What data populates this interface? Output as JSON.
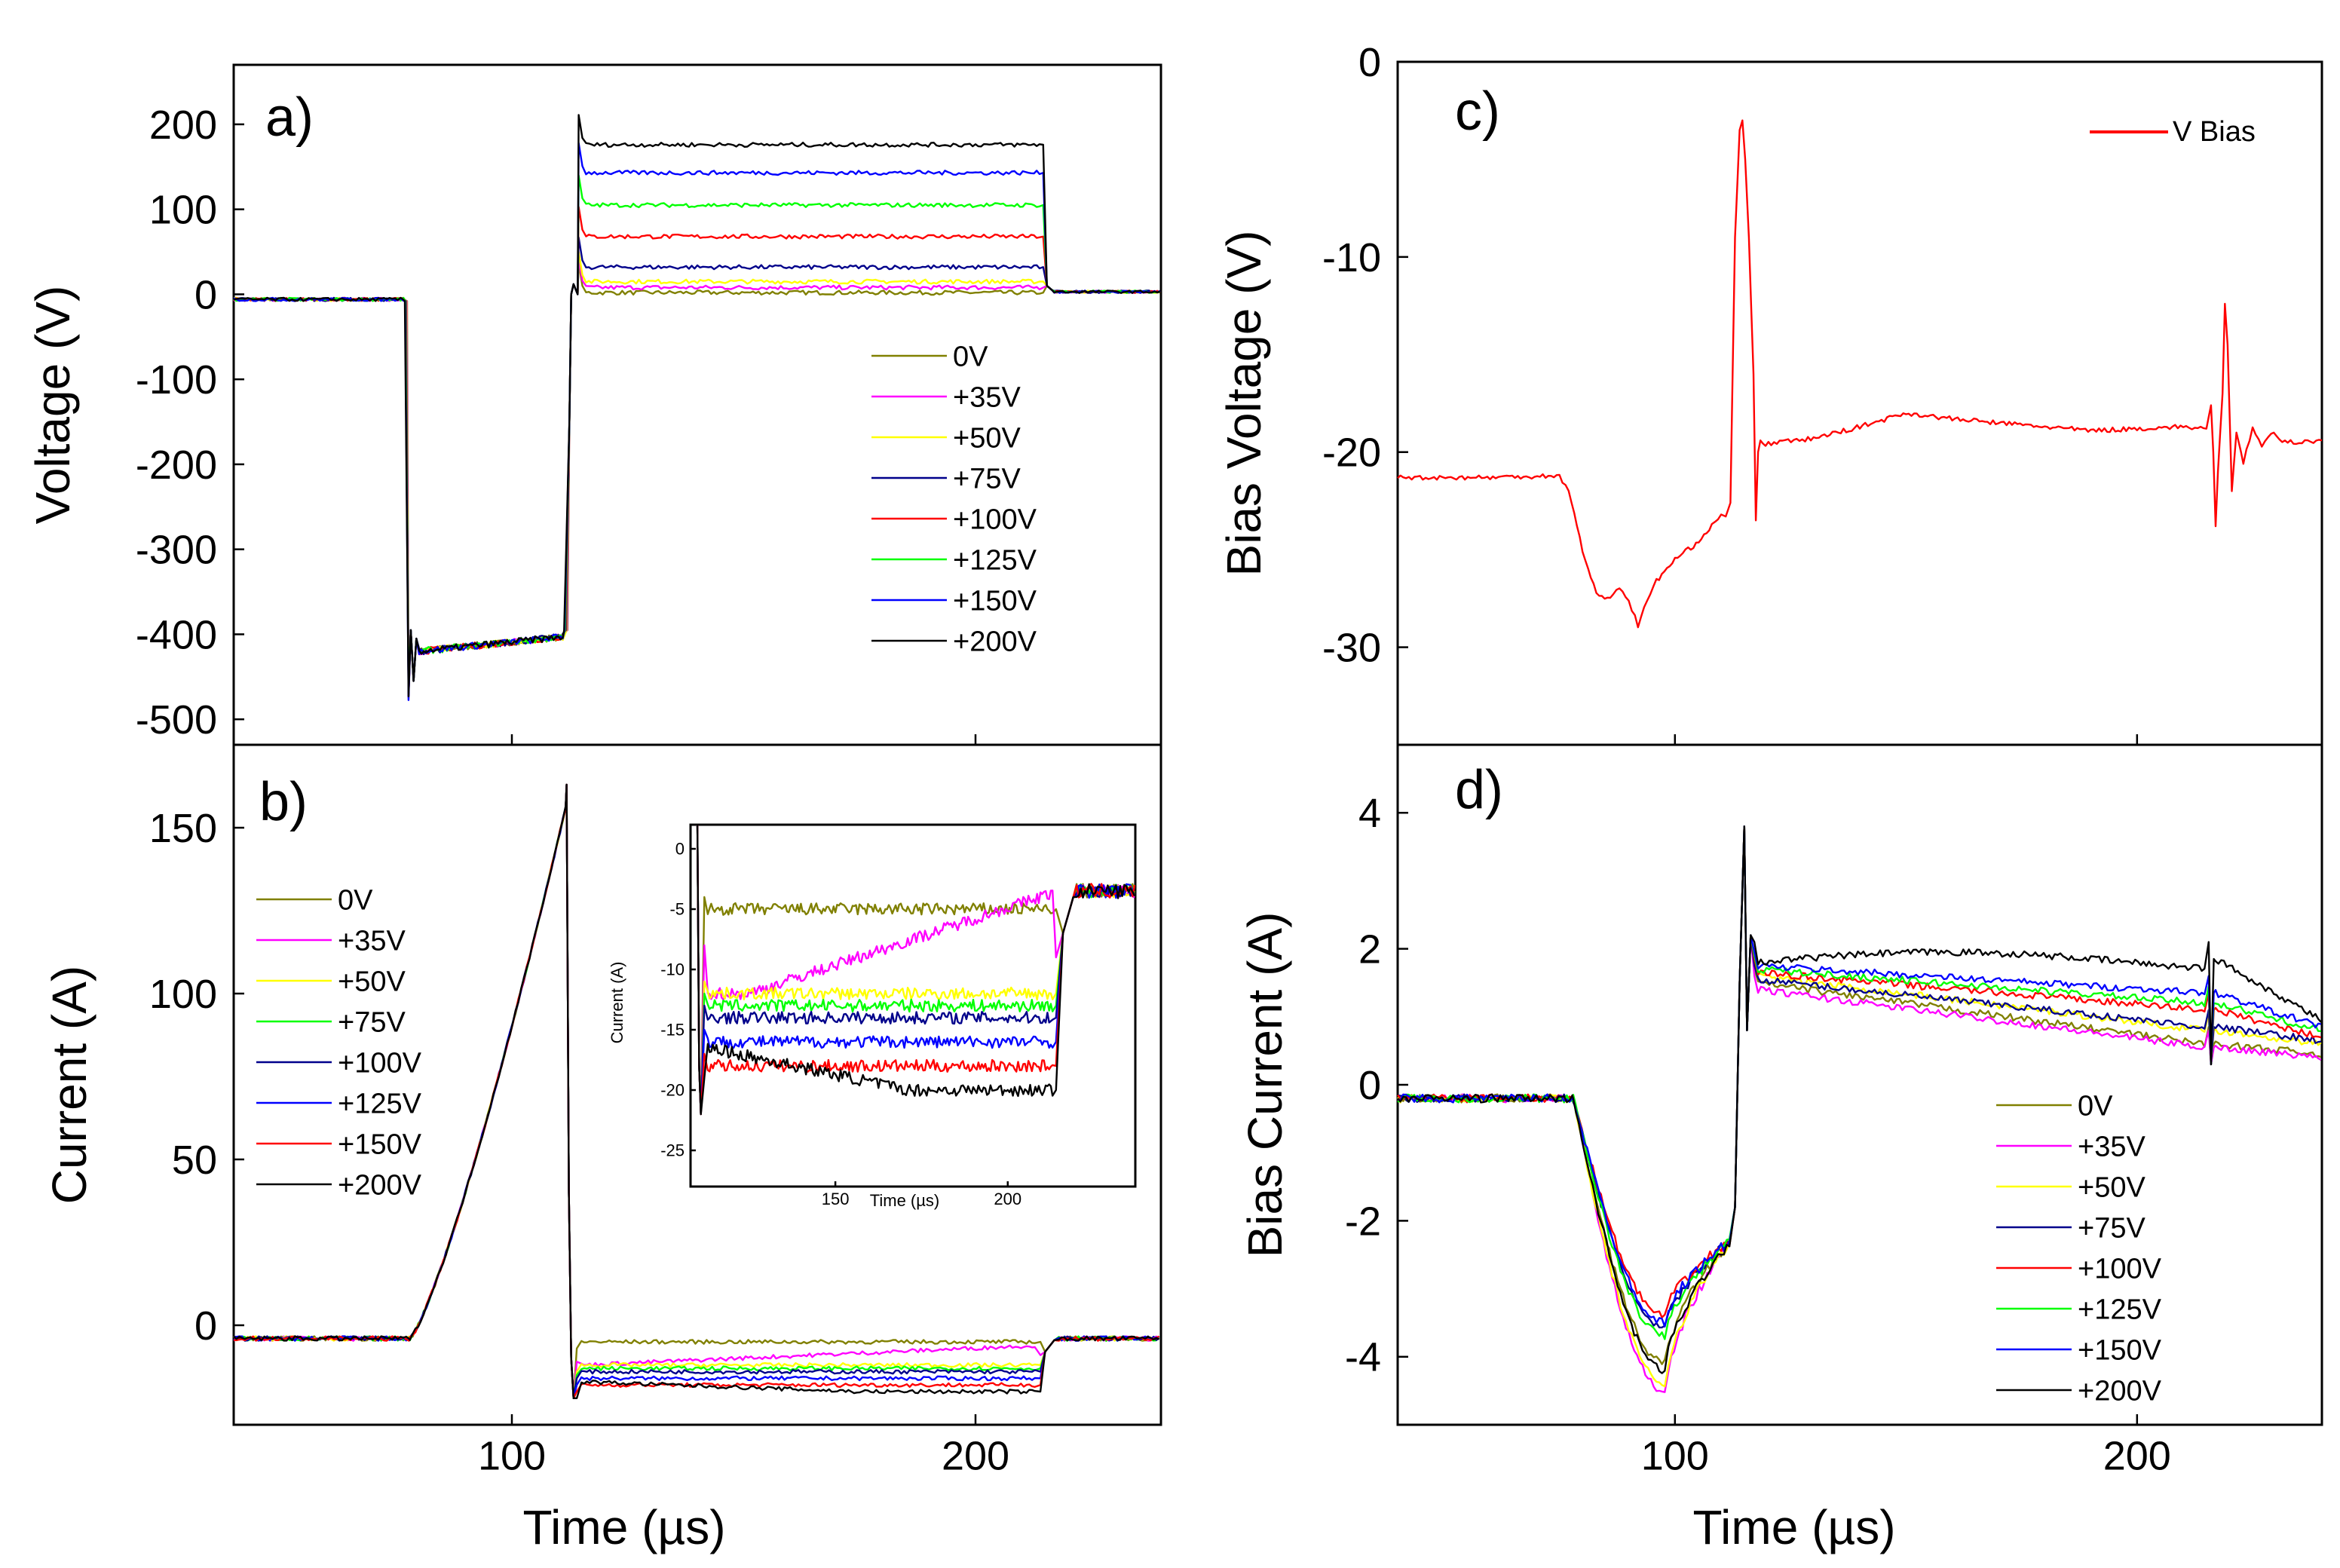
{
  "chart_data": [
    {
      "id": "a",
      "panel_label": "a)",
      "type": "line",
      "title": "",
      "xlabel": "",
      "ylabel": "Voltage (V)",
      "xlim": [
        40,
        240
      ],
      "ylim": [
        -530,
        270
      ],
      "grid": false,
      "yticks": [
        200,
        100,
        0,
        -100,
        -200,
        -300,
        -400,
        -500
      ],
      "ytick_labels": [
        "200",
        "100",
        "0",
        "-100",
        "-200",
        "-300",
        "-400",
        "-500"
      ],
      "xticks": [
        100,
        200
      ],
      "xtick_labels": [
        "",
        ""
      ],
      "legend": {
        "placement": "center-right",
        "entries": [
          "0V",
          "+35V",
          "+50V",
          "+75V",
          "+100V",
          "+125V",
          "+150V",
          "+200V"
        ]
      },
      "series": [
        {
          "name": "0V",
          "color": "#808000",
          "base": 2
        },
        {
          "name": "+35V",
          "color": "#ff00ff",
          "base": 8
        },
        {
          "name": "+50V",
          "color": "#ffff00",
          "base": 15
        },
        {
          "name": "+75V",
          "color": "#00008b",
          "base": 32
        },
        {
          "name": "+100V",
          "color": "#ff0000",
          "base": 68
        },
        {
          "name": "+125V",
          "color": "#00ff00",
          "base": 105
        },
        {
          "name": "+150V",
          "color": "#0000ff",
          "base": 143
        },
        {
          "name": "+200V",
          "color": "#000000",
          "base": 176
        }
      ]
    },
    {
      "id": "b",
      "panel_label": "b)",
      "type": "line",
      "title": "",
      "xlabel": "Time (µs)",
      "ylabel": "Current (A)",
      "xlim": [
        40,
        240
      ],
      "ylim": [
        -30,
        175
      ],
      "grid": false,
      "yticks": [
        150,
        100,
        50,
        0
      ],
      "ytick_labels": [
        "150",
        "100",
        "50",
        "0"
      ],
      "xticks": [
        100,
        200
      ],
      "xtick_labels": [
        "100",
        "200"
      ],
      "legend": {
        "placement": "left",
        "entries": [
          "0V",
          "+35V",
          "+50V",
          "+75V",
          "+100V",
          "+125V",
          "+150V",
          "+200V"
        ]
      },
      "series": [
        {
          "name": "0V",
          "color": "#808000",
          "base": -5
        },
        {
          "name": "+35V",
          "color": "#ff00ff",
          "base": -9
        },
        {
          "name": "+50V",
          "color": "#ffff00",
          "base": -12
        },
        {
          "name": "+75V",
          "color": "#00ff00",
          "base": -13
        },
        {
          "name": "+100V",
          "color": "#00008b",
          "base": -14
        },
        {
          "name": "+125V",
          "color": "#0000ff",
          "base": -16
        },
        {
          "name": "+150V",
          "color": "#ff0000",
          "base": -18
        },
        {
          "name": "+200V",
          "color": "#000000",
          "base": -20
        }
      ],
      "inset": {
        "xlabel": "Time (µs)",
        "ylabel": "Current (A)",
        "xlim": [
          108,
          237
        ],
        "ylim": [
          -28,
          2
        ],
        "yticks": [
          0,
          -5,
          -10,
          -15,
          -20,
          -25
        ],
        "ytick_labels": [
          "0",
          "-5",
          "-10",
          "-15",
          "-20",
          "-25"
        ],
        "xticks": [
          150,
          200
        ],
        "xtick_labels": [
          "150",
          "200"
        ]
      }
    },
    {
      "id": "c",
      "panel_label": "c)",
      "type": "line",
      "title": "",
      "xlabel": "",
      "ylabel": "Bias Voltage (V)",
      "xlim": [
        40,
        240
      ],
      "ylim": [
        -35,
        0
      ],
      "grid": false,
      "yticks": [
        0,
        -10,
        -20,
        -30
      ],
      "ytick_labels": [
        "0",
        "-10",
        "-20",
        "-30"
      ],
      "xticks": [
        100,
        200
      ],
      "xtick_labels": [
        "",
        ""
      ],
      "legend": {
        "placement": "top-right",
        "entries": [
          "V Bias"
        ]
      },
      "series": [
        {
          "name": "V Bias",
          "color": "#ff0000",
          "points": [
            [
              40,
              -21.3
            ],
            [
              60,
              -21.3
            ],
            [
              75,
              -21.2
            ],
            [
              77,
              -22
            ],
            [
              80,
              -25
            ],
            [
              83,
              -27.3
            ],
            [
              86,
              -27.5
            ],
            [
              88,
              -26.9
            ],
            [
              90,
              -27.6
            ],
            [
              92,
              -28.9
            ],
            [
              94,
              -27.6
            ],
            [
              96,
              -26.6
            ],
            [
              100,
              -25.5
            ],
            [
              104,
              -24.8
            ],
            [
              108,
              -23.8
            ],
            [
              110,
              -23.2
            ],
            [
              111,
              -23.3
            ],
            [
              112,
              -22.6
            ],
            [
              113,
              -9
            ],
            [
              114,
              -3.5
            ],
            [
              114.6,
              -3
            ],
            [
              115.2,
              -5
            ],
            [
              116,
              -9
            ],
            [
              117,
              -16
            ],
            [
              117.5,
              -23.5
            ],
            [
              118,
              -20
            ],
            [
              118.5,
              -19.4
            ],
            [
              119,
              -19.6
            ],
            [
              130,
              -19.3
            ],
            [
              140,
              -18.7
            ],
            [
              150,
              -18
            ],
            [
              160,
              -18.3
            ],
            [
              170,
              -18.5
            ],
            [
              180,
              -18.7
            ],
            [
              190,
              -18.9
            ],
            [
              200,
              -18.8
            ],
            [
              210,
              -18.7
            ],
            [
              215,
              -18.8
            ],
            [
              216,
              -17.6
            ],
            [
              216.5,
              -20
            ],
            [
              217,
              -23.8
            ],
            [
              217.5,
              -21
            ],
            [
              218.5,
              -17
            ],
            [
              219,
              -12.4
            ],
            [
              219.6,
              -14.5
            ],
            [
              220.5,
              -22
            ],
            [
              221.5,
              -19
            ],
            [
              223,
              -20.5
            ],
            [
              225,
              -18.8
            ],
            [
              227,
              -19.8
            ],
            [
              229,
              -19
            ],
            [
              232,
              -19.5
            ],
            [
              240,
              -19.4
            ]
          ]
        }
      ]
    },
    {
      "id": "d",
      "panel_label": "d)",
      "type": "line",
      "title": "",
      "xlabel": "Time (µs)",
      "ylabel": "Bias Current (A)",
      "xlim": [
        40,
        240
      ],
      "ylim": [
        -5,
        5
      ],
      "grid": false,
      "yticks": [
        4,
        2,
        0,
        -2,
        -4
      ],
      "ytick_labels": [
        "4",
        "2",
        "0",
        "-2",
        "-4"
      ],
      "xticks": [
        100,
        200
      ],
      "xtick_labels": [
        "100",
        "200"
      ],
      "legend": {
        "placement": "bottom-right",
        "entries": [
          "0V",
          "+35V",
          "+50V",
          "+75V",
          "+100V",
          "+125V",
          "+150V",
          "+200V"
        ]
      },
      "series": [
        {
          "name": "0V",
          "color": "#808000",
          "min": -4.1,
          "plateau": [
            1.5,
            0.6,
            0.45
          ]
        },
        {
          "name": "+35V",
          "color": "#ff00ff",
          "min": -4.5,
          "plateau": [
            1.4,
            0.55,
            0.4
          ]
        },
        {
          "name": "+50V",
          "color": "#ffff00",
          "min": -4.4,
          "plateau": [
            1.6,
            0.8,
            0.6
          ]
        },
        {
          "name": "+75V",
          "color": "#00008b",
          "min": -3.6,
          "plateau": [
            1.55,
            0.85,
            0.65
          ]
        },
        {
          "name": "+100V",
          "color": "#ff0000",
          "min": -3.4,
          "plateau": [
            1.65,
            1.1,
            0.7
          ]
        },
        {
          "name": "+125V",
          "color": "#00ff00",
          "min": -3.7,
          "plateau": [
            1.7,
            1.2,
            0.8
          ]
        },
        {
          "name": "+150V",
          "color": "#0000ff",
          "min": -3.5,
          "plateau": [
            1.75,
            1.35,
            0.85
          ]
        },
        {
          "name": "+200V",
          "color": "#000000",
          "min": -4.2,
          "plateau": [
            1.9,
            1.85,
            0.95
          ]
        }
      ]
    }
  ],
  "axis_extras": {
    "time_unit_label": "Time (µs)"
  }
}
